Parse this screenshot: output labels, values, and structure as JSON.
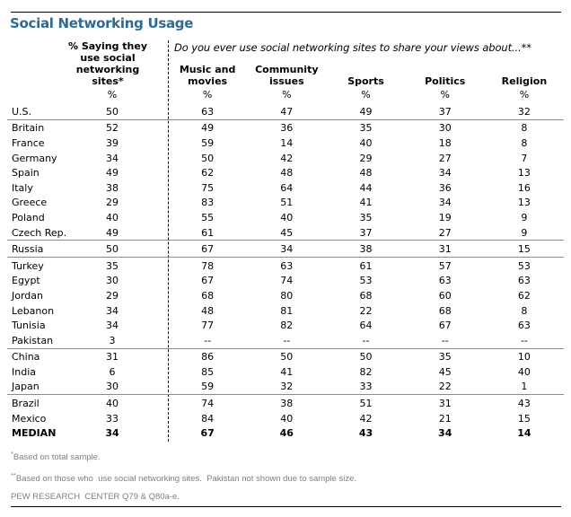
{
  "colors": {
    "title": "#2F6A93",
    "separator_line": "#8C8C8C",
    "footnote_text": "#808080",
    "rule": "#000000"
  },
  "chart_data": {
    "type": "table",
    "title": "Social Networking Usage",
    "col1_header": "% Saying they use social networking sites*",
    "question": "Do you ever use social networking sites to share your views about...**",
    "unit": "%",
    "columns": [
      "Music and movies",
      "Community issues",
      "Sports",
      "Politics",
      "Religion"
    ],
    "rows": [
      {
        "label": "U.S.",
        "values": [
          "50",
          "63",
          "47",
          "49",
          "37",
          "32"
        ],
        "sep_after": true
      },
      {
        "label": "Britain",
        "values": [
          "52",
          "49",
          "36",
          "35",
          "30",
          "8"
        ]
      },
      {
        "label": "France",
        "values": [
          "39",
          "59",
          "14",
          "40",
          "18",
          "8"
        ]
      },
      {
        "label": "Germany",
        "values": [
          "34",
          "50",
          "42",
          "29",
          "27",
          "7"
        ]
      },
      {
        "label": "Spain",
        "values": [
          "49",
          "62",
          "48",
          "48",
          "34",
          "13"
        ]
      },
      {
        "label": "Italy",
        "values": [
          "38",
          "75",
          "64",
          "44",
          "36",
          "16"
        ]
      },
      {
        "label": "Greece",
        "values": [
          "29",
          "83",
          "51",
          "41",
          "34",
          "13"
        ]
      },
      {
        "label": "Poland",
        "values": [
          "40",
          "55",
          "40",
          "35",
          "19",
          "9"
        ]
      },
      {
        "label": "Czech Rep.",
        "values": [
          "49",
          "61",
          "45",
          "37",
          "27",
          "9"
        ],
        "sep_after": true
      },
      {
        "label": "Russia",
        "values": [
          "50",
          "67",
          "34",
          "38",
          "31",
          "15"
        ],
        "sep_after": true
      },
      {
        "label": "Turkey",
        "values": [
          "35",
          "78",
          "63",
          "61",
          "57",
          "53"
        ]
      },
      {
        "label": "Egypt",
        "values": [
          "30",
          "67",
          "74",
          "53",
          "63",
          "63"
        ]
      },
      {
        "label": "Jordan",
        "values": [
          "29",
          "68",
          "80",
          "68",
          "60",
          "62"
        ]
      },
      {
        "label": "Lebanon",
        "values": [
          "34",
          "48",
          "81",
          "22",
          "68",
          "8"
        ]
      },
      {
        "label": "Tunisia",
        "values": [
          "34",
          "77",
          "82",
          "64",
          "67",
          "63"
        ]
      },
      {
        "label": "Pakistan",
        "values": [
          "3",
          "--",
          "--",
          "--",
          "--",
          "--"
        ],
        "sep_after": true
      },
      {
        "label": "China",
        "values": [
          "31",
          "86",
          "50",
          "50",
          "35",
          "10"
        ]
      },
      {
        "label": "India",
        "values": [
          "6",
          "85",
          "41",
          "82",
          "45",
          "40"
        ]
      },
      {
        "label": "Japan",
        "values": [
          "30",
          "59",
          "32",
          "33",
          "22",
          "1"
        ],
        "sep_after": true
      },
      {
        "label": "Brazil",
        "values": [
          "40",
          "74",
          "38",
          "51",
          "31",
          "43"
        ]
      },
      {
        "label": "Mexico",
        "values": [
          "33",
          "84",
          "40",
          "42",
          "21",
          "15"
        ]
      },
      {
        "label": "MEDIAN",
        "values": [
          "34",
          "67",
          "46",
          "43",
          "34",
          "14"
        ],
        "bold": true
      }
    ],
    "footnotes": [
      {
        "sup": "*",
        "text": "Based on total sample."
      },
      {
        "sup": "**",
        "text": "Based on those who  use social networking sites.  Pakistan not shown due to sample size."
      },
      {
        "sup": "",
        "text": "PEW RESEARCH  CENTER Q79 & Q80a-e."
      }
    ]
  }
}
